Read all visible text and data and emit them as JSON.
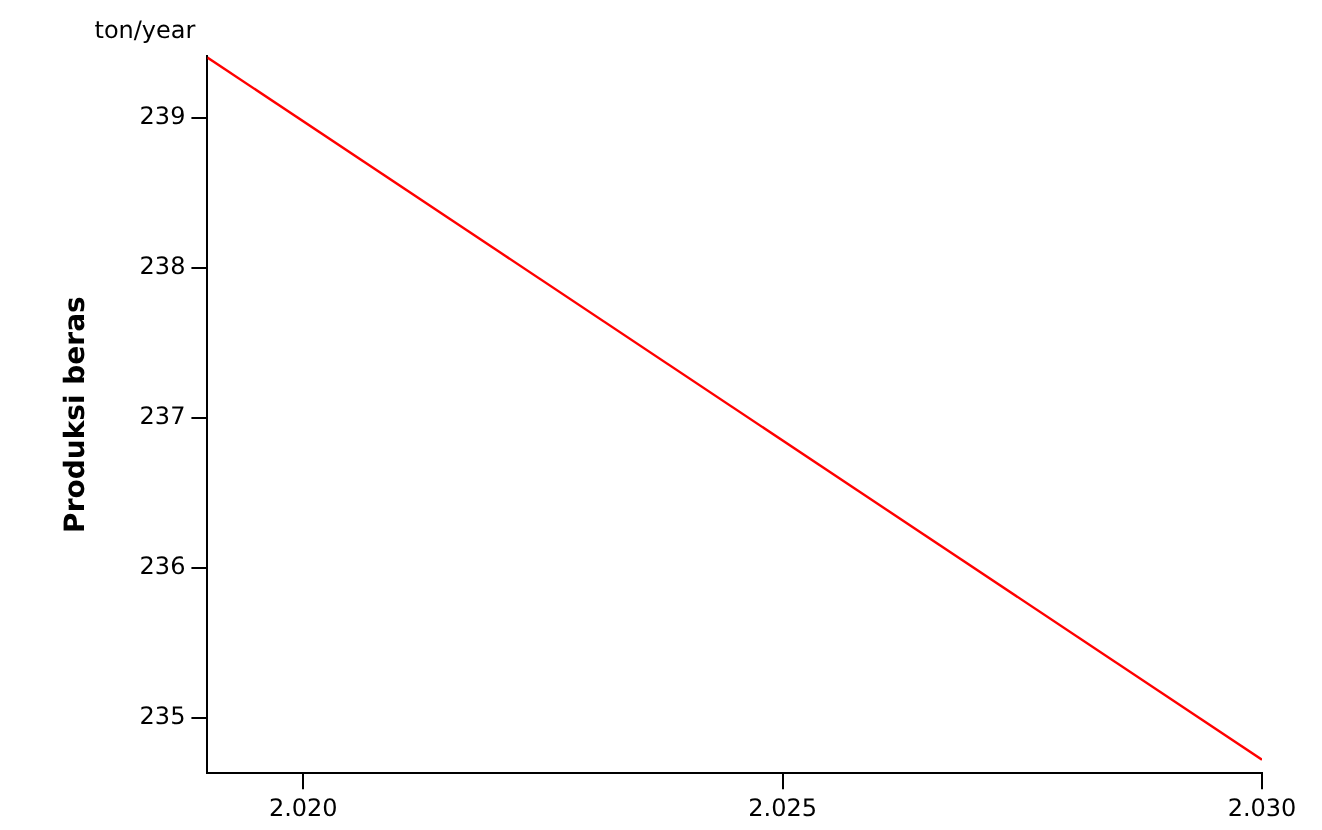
{
  "chart_data": {
    "type": "line",
    "ylabel": "Produksi beras",
    "annotations": [
      "ton/year"
    ],
    "x": [
      2019,
      2030
    ],
    "series": [
      {
        "color": "#ff0000",
        "values": [
          239.4,
          234.72
        ]
      }
    ],
    "xlim": [
      2019,
      2030
    ],
    "ylim": [
      234.63,
      239.41
    ],
    "xticks": [
      {
        "value": 2020,
        "label": "2.020"
      },
      {
        "value": 2025,
        "label": "2.025"
      },
      {
        "value": 2030,
        "label": "2.030"
      }
    ],
    "yticks": [
      235,
      236,
      237,
      238,
      239
    ],
    "grid": false,
    "legend": false,
    "marker": "none",
    "line_style": "solid"
  }
}
